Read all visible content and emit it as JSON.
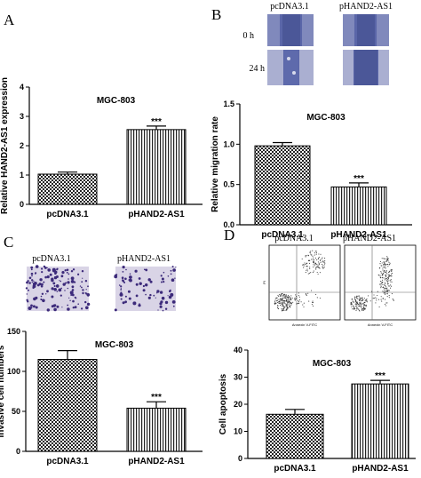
{
  "panels": [
    {
      "letter": "A"
    },
    {
      "letter": "B",
      "image_labels": {
        "columns": [
          "pcDNA3.1",
          "pHAND2-AS1"
        ],
        "rows": [
          "0 h",
          "24 h"
        ]
      }
    },
    {
      "letter": "C",
      "image_labels": {
        "columns": [
          "pcDNA3.1",
          "pHAND2-AS1"
        ]
      }
    },
    {
      "letter": "D",
      "image_labels": {
        "columns": [
          "pcDNA3.1",
          "pHAND2-AS1"
        ],
        "axis_y": "PI",
        "axis_x": "Annexin V-FITC"
      }
    }
  ],
  "colors": {
    "bar_fill": "#ffffff",
    "bar_pattern": "#222222",
    "axis": "#000000"
  },
  "chart_data": [
    {
      "id": "A",
      "type": "bar",
      "title": "MGC-803",
      "categories": [
        "pcDNA3.1",
        "pHAND2-AS1"
      ],
      "values": [
        1.03,
        2.55
      ],
      "errors": [
        0.07,
        0.12
      ],
      "patterns": [
        "checker",
        "vlines"
      ],
      "annotations": [
        "",
        "***"
      ],
      "ylabel": "Relative HAND2-AS1 expression",
      "ylim": [
        0,
        4
      ],
      "yticks": [
        0,
        1,
        2,
        3,
        4
      ],
      "grid": false,
      "legend": "none"
    },
    {
      "id": "B",
      "type": "bar",
      "title": "MGC-803",
      "categories": [
        "pcDNA3.1",
        "pHAND2-AS1"
      ],
      "values": [
        0.98,
        0.47
      ],
      "errors": [
        0.04,
        0.05
      ],
      "patterns": [
        "checker",
        "vlines"
      ],
      "annotations": [
        "",
        "***"
      ],
      "ylabel": "Relative migration rate",
      "ylim": [
        0,
        1.5
      ],
      "yticks": [
        0.0,
        0.5,
        1.0,
        1.5
      ],
      "tick_decimals": 1,
      "grid": false,
      "legend": "none"
    },
    {
      "id": "C",
      "type": "bar",
      "title": "MGC-803",
      "categories": [
        "pcDNA3.1",
        "pHAND2-AS1"
      ],
      "values": [
        115,
        54
      ],
      "errors": [
        11,
        8
      ],
      "patterns": [
        "checker",
        "vlines"
      ],
      "annotations": [
        "",
        "***"
      ],
      "ylabel": "Invasive cell numbers",
      "ylim": [
        0,
        150
      ],
      "yticks": [
        0,
        50,
        100,
        150
      ],
      "grid": false,
      "legend": "none"
    },
    {
      "id": "D",
      "type": "bar",
      "title": "MGC-803",
      "categories": [
        "pcDNA3.1",
        "pHAND2-AS1"
      ],
      "values": [
        16.3,
        27.5
      ],
      "errors": [
        1.8,
        1.3
      ],
      "patterns": [
        "checker",
        "vlines"
      ],
      "annotations": [
        "",
        "***"
      ],
      "ylabel": "Cell apoptosis",
      "ylim": [
        0,
        40
      ],
      "yticks": [
        0,
        10,
        20,
        30,
        40
      ],
      "grid": false,
      "legend": "none"
    }
  ]
}
